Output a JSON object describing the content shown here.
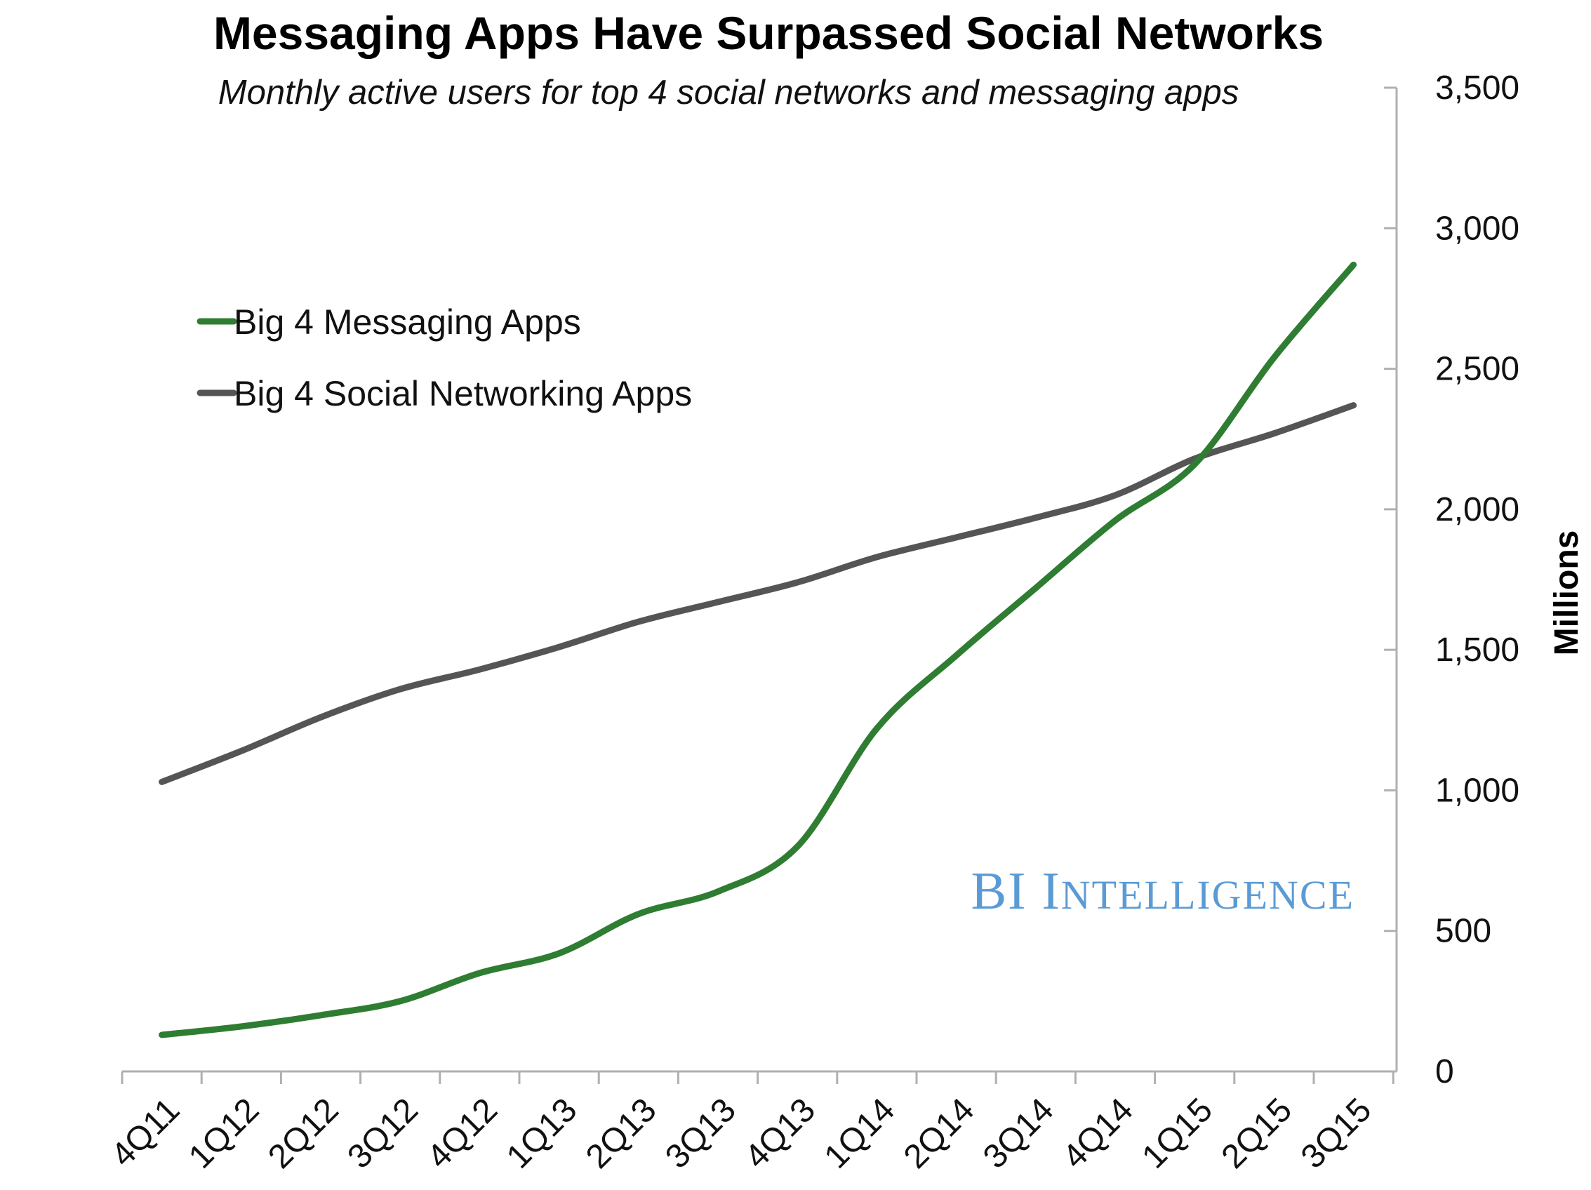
{
  "chart_data": {
    "type": "line",
    "title": "Messaging Apps Have Surpassed Social Networks",
    "subtitle": "Monthly active users for top 4 social networks and messaging apps",
    "ylabel": "Millions",
    "xlabel": "",
    "ylim": [
      0,
      3500
    ],
    "yticks": [
      0,
      500,
      1000,
      1500,
      2000,
      2500,
      3000,
      3500
    ],
    "ytick_labels": [
      "0",
      "500",
      "1,000",
      "1,500",
      "2,000",
      "2,500",
      "3,000",
      "3,500"
    ],
    "y_axis_side": "right",
    "grid": false,
    "legend_position": "upper-left",
    "categories": [
      "4Q11",
      "1Q12",
      "2Q12",
      "3Q12",
      "4Q12",
      "1Q13",
      "2Q13",
      "3Q13",
      "4Q13",
      "1Q14",
      "2Q14",
      "3Q14",
      "4Q14",
      "1Q15",
      "2Q15",
      "3Q15"
    ],
    "series": [
      {
        "name": "Big 4 Messaging Apps",
        "color": "#2e7d32",
        "values": [
          130,
          160,
          200,
          250,
          350,
          420,
          560,
          640,
          800,
          1220,
          1480,
          1720,
          1960,
          2160,
          2540,
          2870
        ]
      },
      {
        "name": "Big 4 Social Networking Apps",
        "color": "#555555",
        "values": [
          1030,
          1140,
          1260,
          1360,
          1430,
          1510,
          1600,
          1670,
          1740,
          1830,
          1900,
          1970,
          2050,
          2180,
          2270,
          2370
        ]
      }
    ]
  },
  "watermark": {
    "text_part1": "BI I",
    "text_part2": "NTELLIGENCE",
    "color": "#5b9bd5"
  }
}
